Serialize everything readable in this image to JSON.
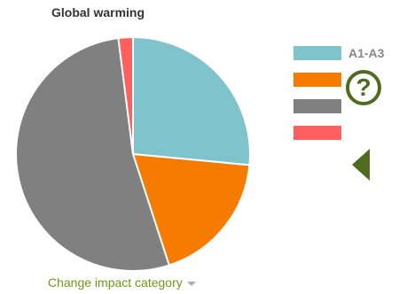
{
  "chart_data": {
    "type": "pie",
    "title": "Global warming",
    "slices": [
      {
        "label": "A1-A3",
        "value": 26.5,
        "color": "#7fc4cc"
      },
      {
        "label": "",
        "value": 18.5,
        "color": "#f57c00"
      },
      {
        "label": "",
        "value": 53.0,
        "color": "#808080"
      },
      {
        "label": "",
        "value": 2.0,
        "color": "#ff5f5f"
      }
    ],
    "legend_position": "right"
  },
  "controls": {
    "help_glyph": "?",
    "change_category_label": "Change impact category"
  },
  "icons": {
    "help": "question-circle-icon",
    "collapse": "chevron-left-icon",
    "dropdown": "caret-down-icon"
  },
  "colors": {
    "accent": "#4f6b1d",
    "link": "#6e9a12"
  }
}
